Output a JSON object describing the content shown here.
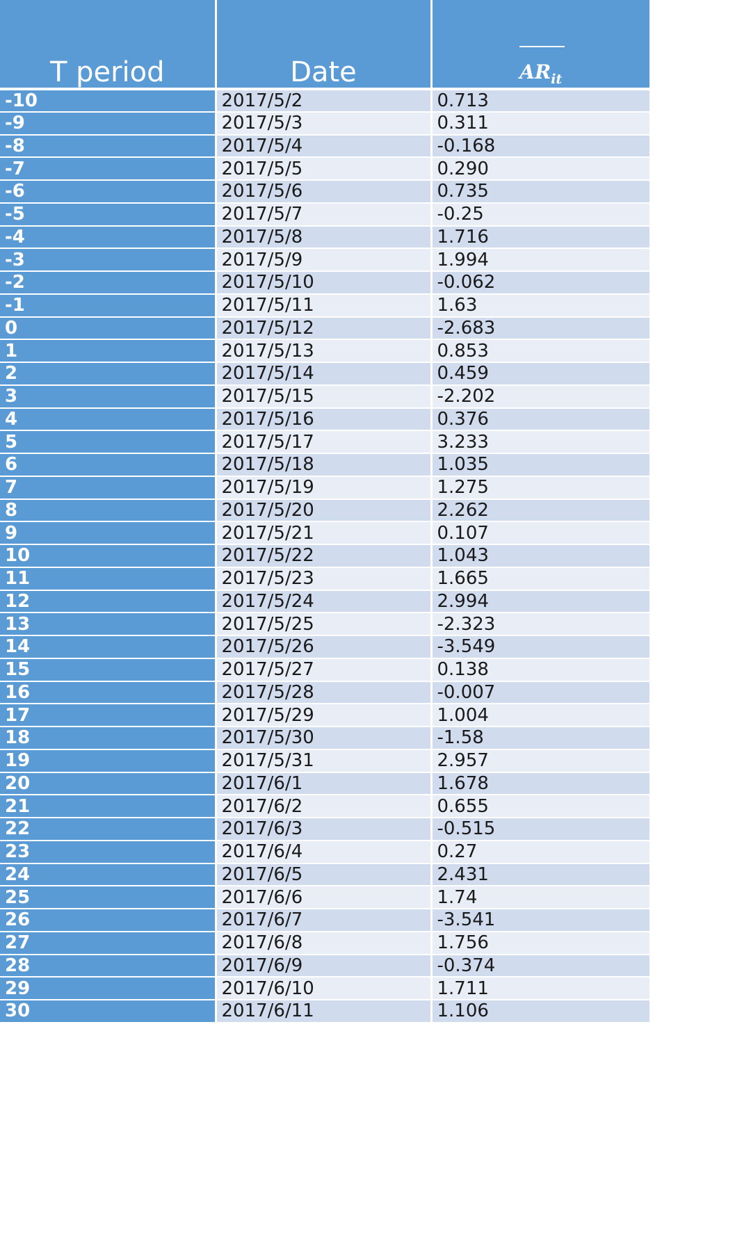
{
  "table": {
    "headers": {
      "t_period": "T period",
      "date": "Date",
      "ar_base": "AR",
      "ar_sub": "it"
    },
    "rows": [
      {
        "t": "-10",
        "date": "2017/5/2",
        "ar": "0.713"
      },
      {
        "t": "-9",
        "date": "2017/5/3",
        "ar": "0.311"
      },
      {
        "t": "-8",
        "date": "2017/5/4",
        "ar": "-0.168"
      },
      {
        "t": "-7",
        "date": "2017/5/5",
        "ar": "0.290"
      },
      {
        "t": "-6",
        "date": "2017/5/6",
        "ar": "0.735"
      },
      {
        "t": "-5",
        "date": "2017/5/7",
        "ar": "-0.25"
      },
      {
        "t": "-4",
        "date": "2017/5/8",
        "ar": "1.716"
      },
      {
        "t": "-3",
        "date": "2017/5/9",
        "ar": "1.994"
      },
      {
        "t": "-2",
        "date": "2017/5/10",
        "ar": "-0.062"
      },
      {
        "t": "-1",
        "date": "2017/5/11",
        "ar": "1.63"
      },
      {
        "t": "0",
        "date": "2017/5/12",
        "ar": "-2.683"
      },
      {
        "t": "1",
        "date": "2017/5/13",
        "ar": "0.853"
      },
      {
        "t": "2",
        "date": "2017/5/14",
        "ar": "0.459"
      },
      {
        "t": "3",
        "date": "2017/5/15",
        "ar": "-2.202"
      },
      {
        "t": "4",
        "date": "2017/5/16",
        "ar": "0.376"
      },
      {
        "t": "5",
        "date": "2017/5/17",
        "ar": "3.233"
      },
      {
        "t": "6",
        "date": "2017/5/18",
        "ar": "1.035"
      },
      {
        "t": "7",
        "date": "2017/5/19",
        "ar": "1.275"
      },
      {
        "t": "8",
        "date": "2017/5/20",
        "ar": "2.262"
      },
      {
        "t": "9",
        "date": "2017/5/21",
        "ar": "0.107"
      },
      {
        "t": "10",
        "date": "2017/5/22",
        "ar": "1.043"
      },
      {
        "t": "11",
        "date": "2017/5/23",
        "ar": "1.665"
      },
      {
        "t": "12",
        "date": "2017/5/24",
        "ar": "2.994"
      },
      {
        "t": "13",
        "date": "2017/5/25",
        "ar": "-2.323"
      },
      {
        "t": "14",
        "date": "2017/5/26",
        "ar": "-3.549"
      },
      {
        "t": "15",
        "date": "2017/5/27",
        "ar": "0.138"
      },
      {
        "t": "16",
        "date": "2017/5/28",
        "ar": "-0.007"
      },
      {
        "t": "17",
        "date": "2017/5/29",
        "ar": "1.004"
      },
      {
        "t": "18",
        "date": "2017/5/30",
        "ar": "-1.58"
      },
      {
        "t": "19",
        "date": "2017/5/31",
        "ar": "2.957"
      },
      {
        "t": "20",
        "date": "2017/6/1",
        "ar": "1.678"
      },
      {
        "t": "21",
        "date": "2017/6/2",
        "ar": "0.655"
      },
      {
        "t": "22",
        "date": "2017/6/3",
        "ar": "-0.515"
      },
      {
        "t": "23",
        "date": "2017/6/4",
        "ar": "0.27"
      },
      {
        "t": "24",
        "date": "2017/6/5",
        "ar": "2.431"
      },
      {
        "t": "25",
        "date": "2017/6/6",
        "ar": "1.74"
      },
      {
        "t": "26",
        "date": "2017/6/7",
        "ar": "-3.541"
      },
      {
        "t": "27",
        "date": "2017/6/8",
        "ar": "1.756"
      },
      {
        "t": "28",
        "date": "2017/6/9",
        "ar": "-0.374"
      },
      {
        "t": "29",
        "date": "2017/6/10",
        "ar": "1.711"
      },
      {
        "t": "30",
        "date": "2017/6/11",
        "ar": "1.106"
      }
    ]
  },
  "colors": {
    "header_blue": "#5b9bd5",
    "band_dark": "#d0dbee",
    "band_light": "#e9edf6",
    "text_white": "#ffffff",
    "text_dark": "#1a1a1a"
  }
}
